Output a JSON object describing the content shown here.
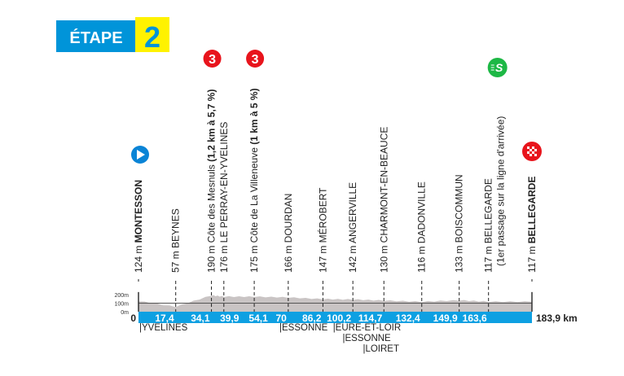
{
  "header": {
    "stage_word": "ÉTAPE",
    "stage_number": "2",
    "colors": {
      "blue": "#0094d9",
      "yellow": "#fff200"
    }
  },
  "axis": {
    "start_label": "0",
    "end_label": "183,9 km",
    "total_km": 183.9,
    "alt_ticks": [
      "0m",
      "100m",
      "200m"
    ],
    "alt_values": [
      0,
      100,
      200
    ],
    "bar_color": "#0ea0e2",
    "profile_color": "#c9c4c4"
  },
  "points": [
    {
      "km": 0,
      "alt": 124,
      "alt_label": "124 m",
      "name": "MONTESSON",
      "bold": true,
      "icon": "start-icon"
    },
    {
      "km": 17.4,
      "km_label": "17,4",
      "alt": 57,
      "alt_label": "57 m",
      "name": "BEYNES"
    },
    {
      "km": 34.1,
      "km_label": "34,1",
      "alt": 190,
      "alt_label": "190 m",
      "name": "Côte des Mesnuls",
      "extra": "(1,2 km à 5,7 %)",
      "icon": "climb-cat3-icon",
      "badge": "3"
    },
    {
      "km": 39.9,
      "km_label": "39,9",
      "alt": 176,
      "alt_label": "176 m",
      "name": "LE PERRAY-EN-YVELINES"
    },
    {
      "km": 54.1,
      "km_label": "54,1",
      "alt": 175,
      "alt_label": "175 m",
      "name": "Côte de La Villeneuve",
      "extra": "(1 km à 5 %)",
      "icon": "climb-cat3-icon",
      "badge": "3"
    },
    {
      "km": 70,
      "km_label": "70",
      "alt": 166,
      "alt_label": "166 m",
      "name": "DOURDAN"
    },
    {
      "km": 86.2,
      "km_label": "86,2",
      "alt": 147,
      "alt_label": "147 m",
      "name": "MÉROBERT"
    },
    {
      "km": 100.2,
      "km_label": "100,2",
      "alt": 142,
      "alt_label": "142 m",
      "name": "ANGERVILLE"
    },
    {
      "km": 114.7,
      "km_label": "114,7",
      "alt": 130,
      "alt_label": "130 m",
      "name": "CHARMONT-EN-BEAUCE"
    },
    {
      "km": 132.4,
      "km_label": "132,4",
      "alt": 116,
      "alt_label": "116 m",
      "name": "DADONVILLE"
    },
    {
      "km": 149.9,
      "km_label": "149,9",
      "alt": 133,
      "alt_label": "133 m",
      "name": "BOISCOMMUN"
    },
    {
      "km": 163.6,
      "km_label": "163,6",
      "alt": 117,
      "alt_label": "117 m",
      "name": "BELLEGARDE",
      "second_line": "(1er passage sur la ligne d'arrivée)",
      "icon": "sprint-icon",
      "badge": "S"
    },
    {
      "km": 183.9,
      "alt": 117,
      "alt_label": "117 m",
      "name": "BELLEGARDE",
      "bold": true,
      "icon": "finish-icon"
    }
  ],
  "departments": [
    {
      "label": "|YVELINES",
      "km": 0,
      "row": 0
    },
    {
      "label": "|ESSONNE",
      "km": 65.5,
      "row": 0
    },
    {
      "label": "|EURE-ET-LOIR",
      "km": 90.5,
      "row": 0
    },
    {
      "label": "|ESSONNE",
      "km": 95,
      "row": 1
    },
    {
      "label": "|LOIRET",
      "km": 104.5,
      "row": 2
    }
  ],
  "icon_colors": {
    "start": "#0a84d6",
    "climb": "#e8141c",
    "sprint": "#1db845",
    "finish": "#e8141c"
  }
}
